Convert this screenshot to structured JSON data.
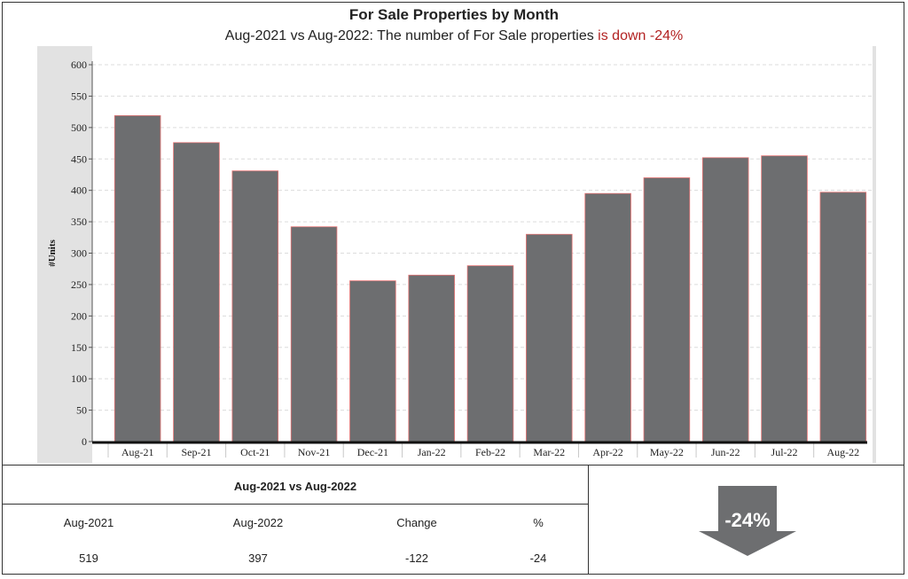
{
  "header": {
    "title": "For Sale Properties by Month",
    "subtitle_prefix": "Aug-2021 vs Aug-2022: The number of For Sale properties ",
    "subtitle_highlight": "is down -24%"
  },
  "colors": {
    "bar_fill": "#6d6e70",
    "bar_stroke": "#e57373",
    "highlight": "#b22222",
    "arrow": "#6d6e70"
  },
  "chart_data": {
    "type": "bar",
    "title": "For Sale Properties by Month",
    "ylabel": "#Units",
    "xlabel": "",
    "ylim": [
      0,
      600
    ],
    "yticks": [
      0,
      50,
      100,
      150,
      200,
      250,
      300,
      350,
      400,
      450,
      500,
      550,
      600
    ],
    "grid": true,
    "categories": [
      "Aug-21",
      "Sep-21",
      "Oct-21",
      "Nov-21",
      "Dec-21",
      "Jan-22",
      "Feb-22",
      "Mar-22",
      "Apr-22",
      "May-22",
      "Jun-22",
      "Jul-22",
      "Aug-22"
    ],
    "values": [
      519,
      476,
      431,
      342,
      256,
      265,
      280,
      330,
      395,
      420,
      452,
      455,
      397
    ]
  },
  "summary": {
    "title": "Aug-2021 vs Aug-2022",
    "headers": [
      "Aug-2021",
      "Aug-2022",
      "Change",
      "%"
    ],
    "values": [
      "519",
      "397",
      "-122",
      "-24"
    ]
  },
  "arrow": {
    "icon": "down-arrow-icon",
    "label": "-24%"
  }
}
